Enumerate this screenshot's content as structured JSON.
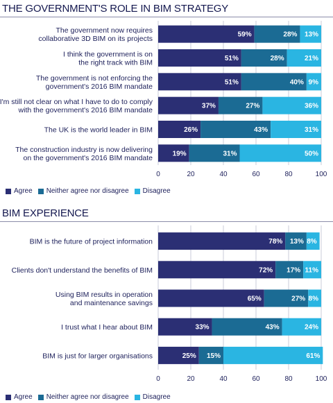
{
  "colors": {
    "agree": "#2b2f74",
    "neutral": "#1b6b94",
    "disagree": "#2ab5e2",
    "grid": "#c9cbd8",
    "text": "#1c1f5a"
  },
  "legend": {
    "agree": "Agree",
    "neutral": "Neither agree nor disagree",
    "disagree": "Disagree"
  },
  "chart_data": [
    {
      "type": "bar",
      "orientation": "horizontal",
      "stacked": true,
      "title": "THE GOVERNMENT'S ROLE IN BIM STRATEGY",
      "categories": [
        [
          "The government now requires",
          "collaborative 3D BIM on its projects"
        ],
        [
          "I think the government is on",
          "the right track with BIM"
        ],
        [
          "The government is not enforcing the",
          "government's 2016 BIM mandate"
        ],
        [
          "I'm still not clear on what I have to do to comply",
          "with the government's 2016 BIM mandate"
        ],
        [
          "The UK is the world leader in BIM"
        ],
        [
          "The construction industry is now delivering",
          "on the government's 2016 BIM mandate"
        ]
      ],
      "series": [
        {
          "name": "Agree",
          "values": [
            59,
            51,
            51,
            37,
            26,
            19
          ]
        },
        {
          "name": "Neither agree nor disagree",
          "values": [
            28,
            28,
            40,
            27,
            43,
            31
          ]
        },
        {
          "name": "Disagree",
          "values": [
            13,
            21,
            9,
            36,
            31,
            50
          ]
        }
      ],
      "xlim": [
        0,
        100
      ],
      "xticks": [
        "0",
        "20",
        "40",
        "60",
        "80",
        "100"
      ],
      "grid": true,
      "legend_position": "bottom-left"
    },
    {
      "type": "bar",
      "orientation": "horizontal",
      "stacked": true,
      "title": "BIM EXPERIENCE",
      "categories": [
        [
          "BIM is the future of project information"
        ],
        [
          "Clients don't understand the benefits of BIM"
        ],
        [
          "Using BIM results in operation",
          "and maintenance savings"
        ],
        [
          "I trust what I hear about BIM"
        ],
        [
          "BIM is just for larger organisations"
        ]
      ],
      "series": [
        {
          "name": "Agree",
          "values": [
            78,
            72,
            65,
            33,
            25
          ]
        },
        {
          "name": "Neither agree nor disagree",
          "values": [
            13,
            17,
            27,
            43,
            15
          ]
        },
        {
          "name": "Disagree",
          "values": [
            8,
            11,
            8,
            24,
            61
          ]
        }
      ],
      "xlim": [
        0,
        100
      ],
      "xticks": [
        "0",
        "20",
        "40",
        "60",
        "80",
        "100"
      ],
      "grid": true,
      "legend_position": "bottom-left"
    }
  ]
}
